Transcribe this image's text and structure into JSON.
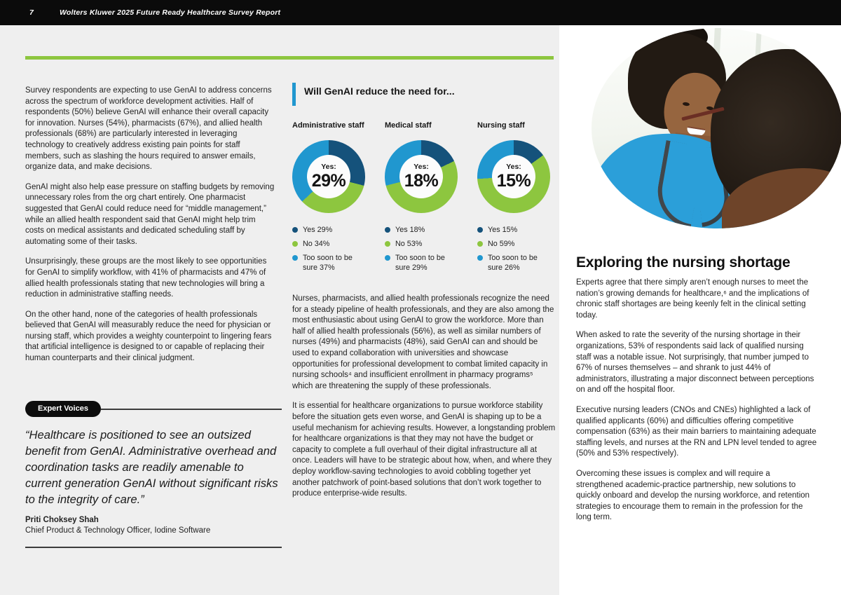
{
  "header": {
    "page_number": "7",
    "title": "Wolters Kluwer 2025 Future Ready Healthcare Survey Report"
  },
  "colors": {
    "accent_green": "#8dc63f",
    "accent_blue": "#2097cf",
    "navy": "#15527b",
    "page_bg": "#efefef",
    "topbar_bg": "#0b0b0b",
    "text": "#232323"
  },
  "left_column": {
    "paragraphs": [
      "Survey respondents are expecting to use GenAI to address concerns across the spectrum of workforce development activities. Half of respondents (50%) believe GenAI will enhance their overall capacity for innovation. Nurses (54%), pharmacists (67%), and allied health professionals (68%) are particularly interested in leveraging technology to creatively address existing pain points for staff members, such as slashing the hours required to answer emails, organize data, and make decisions.",
      "GenAI might also help ease pressure on staffing budgets by removing unnecessary roles from the org chart entirely. One pharmacist suggested that GenAI could reduce need for “middle management,” while an allied health respondent said that GenAI might help trim costs on medical assistants and dedicated scheduling staff by automating some of their tasks.",
      "Unsurprisingly, these groups are the most likely to see opportunities for GenAI to simplify workflow, with 41% of pharmacists and 47% of allied health professionals stating that new technologies will bring a reduction in administrative staffing needs.",
      "On the other hand, none of the categories of health professionals believed that GenAI will measurably reduce the need for physician or nursing staff, which provides a weighty counterpoint to lingering fears that artificial intelligence is designed to or capable of replacing their human counterparts and their clinical judgment."
    ],
    "expert_voices": {
      "badge": "Expert Voices",
      "quote": "“Healthcare is positioned to see an outsized benefit from GenAI. Administrative overhead and coordination tasks are readily amenable to current generation GenAI without significant risks to the integrity of care.”",
      "author": "Priti Choksey Shah",
      "author_title": "Chief Product & Technology Officer, Iodine Software"
    }
  },
  "chart_section": {
    "title": "Will GenAI reduce the need for..."
  },
  "chart_data": [
    {
      "type": "pie",
      "title": "Administrative staff",
      "center_label": "Yes:",
      "center_value": "29%",
      "slices": [
        {
          "label": "Yes",
          "value": 29,
          "pct_label": "Yes 29%",
          "color": "#15527b"
        },
        {
          "label": "No",
          "value": 34,
          "pct_label": "No 34%",
          "color": "#8dc63f"
        },
        {
          "label": "Too soon to be sure",
          "value": 37,
          "pct_label": "Too soon to be sure 37%",
          "color": "#2097cf"
        }
      ]
    },
    {
      "type": "pie",
      "title": "Medical staff",
      "center_label": "Yes:",
      "center_value": "18%",
      "slices": [
        {
          "label": "Yes",
          "value": 18,
          "pct_label": "Yes 18%",
          "color": "#15527b"
        },
        {
          "label": "No",
          "value": 53,
          "pct_label": "No 53%",
          "color": "#8dc63f"
        },
        {
          "label": "Too soon to be sure",
          "value": 29,
          "pct_label": "Too soon to be sure 29%",
          "color": "#2097cf"
        }
      ]
    },
    {
      "type": "pie",
      "title": "Nursing staff",
      "center_label": "Yes:",
      "center_value": "15%",
      "slices": [
        {
          "label": "Yes",
          "value": 15,
          "pct_label": "Yes 15%",
          "color": "#15527b"
        },
        {
          "label": "No",
          "value": 59,
          "pct_label": "No 59%",
          "color": "#8dc63f"
        },
        {
          "label": "Too soon to be sure",
          "value": 26,
          "pct_label": "Too soon to be sure 26%",
          "color": "#2097cf"
        }
      ]
    }
  ],
  "middle_column": {
    "paragraphs": [
      "Nurses, pharmacists, and allied health professionals recognize the need for a steady pipeline of health professionals, and they are also among the most enthusiastic about using GenAI to grow the workforce. More than half of allied health professionals (56%), as well as similar numbers of nurses (49%) and pharmacists (48%), said GenAI can and should be used to expand collaboration with universities and showcase opportunities for professional development to combat limited capacity in nursing schools⁴ and insufficient enrollment in pharmacy programs⁵ which are threatening the supply of these professionals.",
      "It is essential for healthcare organizations to pursue workforce stability before the situation gets even worse, and GenAI is shaping up to be a useful mechanism for achieving results. However, a longstanding problem for healthcare organizations is that they may not have the budget or capacity to complete a full overhaul of their digital infrastructure all at once. Leaders will have to be strategic about how, when, and where they deploy workflow-saving technologies to avoid cobbling together yet another patchwork of point-based solutions that don’t work together to produce enterprise-wide results."
    ]
  },
  "right_column": {
    "heading": "Exploring the nursing shortage",
    "paragraphs": [
      "Experts agree that there simply aren’t enough nurses to meet the nation’s growing demands for healthcare,⁶ and the implications of chronic staff shortages are being keenly felt in the clinical setting today.",
      "When asked to rate the severity of the nursing shortage in their organizations, 53% of respondents said lack of qualified nursing staff was a notable issue. Not surprisingly, that number jumped to 67% of nurses themselves – and shrank to just 44% of administrators, illustrating a major disconnect between perceptions on and off the hospital floor.",
      "Executive nursing leaders (CNOs and CNEs) highlighted a lack of qualified applicants (60%) and difficulties offering competitive compensation (63%) as their main barriers to maintaining adequate staffing levels, and nurses at the RN and LPN level tended to agree (50% and 53% respectively).",
      "Overcoming these issues is complex and will require a strengthened academic-practice partnership, new solutions to quickly onboard and develop the nursing workforce, and retention strategies to encourage them to remain in the profession for the long term."
    ]
  }
}
